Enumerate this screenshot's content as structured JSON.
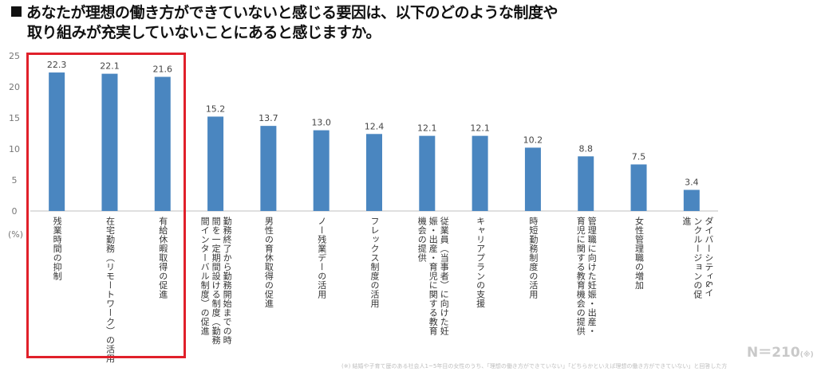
{
  "title": {
    "line1": "あなたが理想の働き方ができていないと感じる要因は、以下のどのような制度や",
    "line2": "取り組みが充実していないことにあると感じますか。"
  },
  "unit_label": "(%)",
  "sample_label": "N＝210",
  "sample_note": "(※)",
  "footnote": "(※) 結婚や子育て歴のある社会人1~5年目の女性のうち、「理想の働き方ができていない」「どちらかといえば理想の働き方ができていない」と回答した方",
  "colors": {
    "bar": "#4a86c0",
    "highlight": "#e0202a",
    "axis": "#bfbfbf"
  },
  "chart_data": {
    "type": "bar",
    "ylim": [
      0,
      25
    ],
    "yticks": [
      0,
      5,
      10,
      15,
      20,
      25
    ],
    "grid": false,
    "categories": [
      "残業時間の抑制",
      "在宅勤務（リモートワーク）の活用",
      "有給休暇取得の促進",
      "勤務終了から勤務開始までの時間を一定期間設ける制度（勤務間インターバル制度）の促進",
      "男性の育休取得の促進",
      "ノー残業デーの活用",
      "フレックス制度の活用",
      "従業員（当事者）に向けた妊娠・出産・育児に関する教育機会の提供",
      "キャリアプランの支援",
      "時短勤務制度の活用",
      "管理職に向けた妊娠・出産・育児に関する教育機会の提供",
      "女性管理職の増加",
      "ダイバーシティ&インクルージョンの促進"
    ],
    "values": [
      22.3,
      22.1,
      21.6,
      15.2,
      13.7,
      13.0,
      12.4,
      12.1,
      12.1,
      10.2,
      8.8,
      7.5,
      3.4
    ],
    "value_labels": [
      "22.3",
      "22.1",
      "21.6",
      "15.2",
      "13.7",
      "13.0",
      "12.4",
      "12.1",
      "12.1",
      "10.2",
      "8.8",
      "7.5",
      "3.4"
    ]
  }
}
